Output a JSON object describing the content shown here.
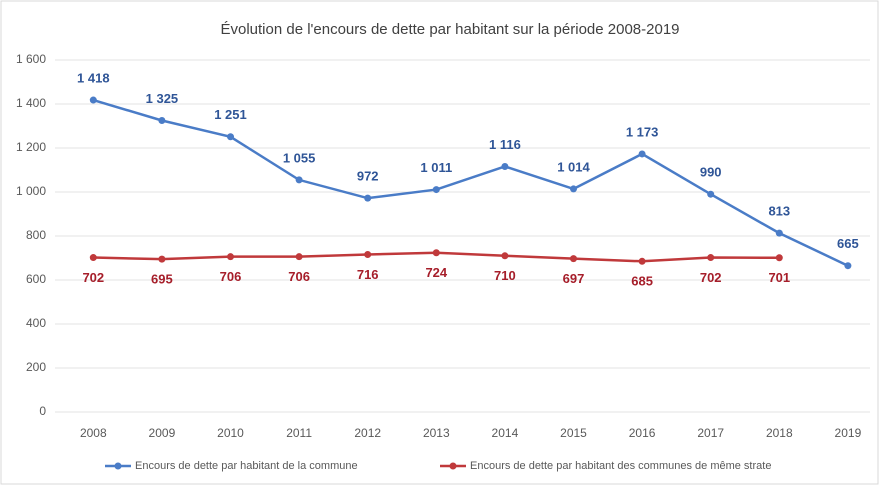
{
  "chart_data": {
    "type": "line",
    "title": "Évolution de l'encours de dette par habitant sur la période 2008-2019",
    "categories": [
      "2008",
      "2009",
      "2010",
      "2011",
      "2012",
      "2013",
      "2014",
      "2015",
      "2016",
      "2017",
      "2018",
      "2019"
    ],
    "series": [
      {
        "name": "Encours de dette par habitant de la commune",
        "color": "#4a7cc7",
        "values": [
          1418,
          1325,
          1251,
          1055,
          972,
          1011,
          1116,
          1014,
          1173,
          990,
          813,
          665
        ],
        "value_labels": [
          "1 418",
          "1 325",
          "1 251",
          "1 055",
          "972",
          "1 011",
          "1 116",
          "1 014",
          "1 173",
          "990",
          "813",
          "665"
        ],
        "label_color": "#2f5597",
        "label_position": "above"
      },
      {
        "name": "Encours de dette par habitant des communes de même strate",
        "color": "#c0393b",
        "values": [
          702,
          695,
          706,
          706,
          716,
          724,
          710,
          697,
          685,
          702,
          701,
          null
        ],
        "label_color": "#a61e2a",
        "label_position": "below"
      }
    ],
    "ylim": [
      0,
      1600
    ],
    "yticks": [
      0,
      200,
      400,
      600,
      800,
      {
        "value": 1000,
        "label": "1 000"
      },
      {
        "value": 1200,
        "label": "1 200"
      },
      {
        "value": 1400,
        "label": "1 400"
      },
      {
        "value": 1600,
        "label": "1 600"
      }
    ],
    "grid": true,
    "legend": "bottom"
  }
}
